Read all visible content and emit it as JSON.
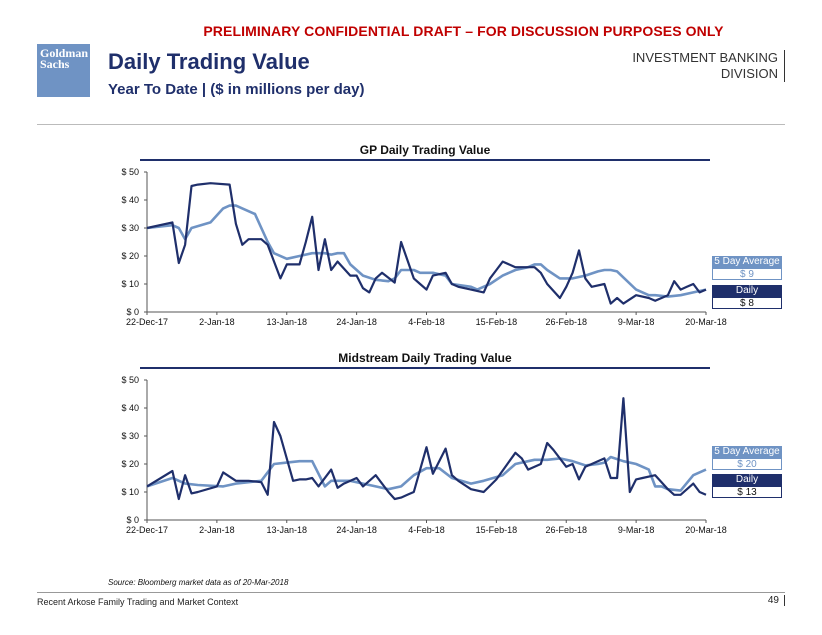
{
  "banner": "PRELIMINARY CONFIDENTIAL DRAFT – FOR DISCUSSION PURPOSES ONLY",
  "logo": {
    "line1": "Goldman",
    "line2": "Sachs"
  },
  "title": "Daily Trading Value",
  "subtitle": "Year To Date | ($ in millions per day)",
  "division": {
    "line1": "INVESTMENT BANKING",
    "line2": "DIVISION"
  },
  "colors": {
    "daily": "#1f2f6b",
    "avg": "#6f93c4",
    "banner": "#c00000"
  },
  "chart_data": [
    {
      "type": "line",
      "title": "GP Daily Trading Value",
      "x_tick_labels": [
        "22-Dec-17",
        "2-Jan-18",
        "13-Jan-18",
        "24-Jan-18",
        "4-Feb-18",
        "15-Feb-18",
        "26-Feb-18",
        "9-Mar-18",
        "20-Mar-18"
      ],
      "y_tick_labels": [
        "$ 0",
        "$ 10",
        "$ 20",
        "$ 30",
        "$ 40",
        "$ 50"
      ],
      "ylim": [
        0,
        50
      ],
      "x_range_days": [
        0,
        88
      ],
      "legend": {
        "avg_label": "5 Day Average",
        "avg_value": "$ 9",
        "daily_label": "Daily",
        "daily_value": "$ 8"
      },
      "series": [
        {
          "name": "Daily",
          "x": [
            0,
            4,
            5,
            6,
            7,
            8,
            10,
            13,
            14,
            15,
            16,
            18,
            19,
            21,
            22,
            24,
            25,
            26,
            27,
            28,
            29,
            30,
            32,
            33,
            34,
            35,
            36,
            37,
            39,
            40,
            42,
            43,
            44,
            45,
            47,
            48,
            49,
            51,
            53,
            54,
            55,
            56,
            58,
            59,
            61,
            62,
            63,
            65,
            66,
            67,
            68,
            69,
            70,
            72,
            73,
            74,
            75,
            77,
            79,
            80,
            82,
            83,
            84,
            85,
            86,
            87,
            88
          ],
          "values": [
            30,
            32,
            17.5,
            24,
            45,
            45.5,
            46,
            45.5,
            31.5,
            24,
            26,
            26,
            24,
            12,
            17,
            17,
            25,
            34,
            15,
            26,
            15,
            18,
            13,
            13,
            8.5,
            7,
            12,
            14,
            10.5,
            25,
            12,
            10,
            8,
            13,
            14,
            10,
            9,
            8,
            7,
            12,
            15,
            18,
            16,
            16,
            16,
            14,
            10,
            5,
            9,
            14,
            22,
            12,
            9,
            10,
            3,
            5,
            3,
            6,
            5,
            4,
            6,
            11,
            8,
            9,
            10,
            7,
            8
          ]
        },
        {
          "name": "5 Day Average",
          "x": [
            0,
            4,
            5,
            6,
            7,
            10,
            12,
            13,
            14,
            15,
            17,
            19,
            20,
            22,
            24,
            26,
            28,
            29,
            30,
            31,
            32,
            34,
            36,
            38,
            39,
            40,
            42,
            43,
            45,
            47,
            48,
            51,
            52,
            54,
            56,
            58,
            60,
            61,
            62,
            63,
            65,
            67,
            69,
            71,
            72,
            73,
            74,
            77,
            79,
            80,
            82,
            84,
            86,
            88
          ],
          "values": [
            30,
            31,
            30,
            26,
            30,
            32,
            37,
            38,
            38,
            37,
            35,
            25,
            21,
            19,
            20,
            21,
            21,
            20.5,
            21,
            21,
            17,
            13,
            11.5,
            11,
            12,
            15,
            15,
            14,
            14,
            13,
            10,
            9,
            8,
            10,
            13,
            15,
            16,
            17,
            17,
            15,
            12,
            12,
            13,
            14.5,
            15,
            15,
            14.5,
            8,
            6,
            6,
            5.5,
            6,
            7,
            8
          ]
        }
      ]
    },
    {
      "type": "line",
      "title": "Midstream Daily Trading Value",
      "x_tick_labels": [
        "22-Dec-17",
        "2-Jan-18",
        "13-Jan-18",
        "24-Jan-18",
        "4-Feb-18",
        "15-Feb-18",
        "26-Feb-18",
        "9-Mar-18",
        "20-Mar-18"
      ],
      "y_tick_labels": [
        "$ 0",
        "$ 10",
        "$ 20",
        "$ 30",
        "$ 40",
        "$ 50"
      ],
      "ylim": [
        0,
        50
      ],
      "x_range_days": [
        0,
        88
      ],
      "legend": {
        "avg_label": "5 Day Average",
        "avg_value": "$ 20",
        "daily_label": "Daily",
        "daily_value": "$ 13"
      },
      "series": [
        {
          "name": "Daily",
          "x": [
            0,
            4,
            5,
            6,
            7,
            8,
            11,
            12,
            14,
            16,
            18,
            19,
            20,
            21,
            23,
            24,
            25,
            26,
            27,
            29,
            30,
            31,
            33,
            34,
            36,
            38,
            39,
            40,
            41,
            42,
            44,
            45,
            47,
            48,
            49,
            51,
            53,
            55,
            58,
            59,
            60,
            62,
            63,
            64,
            66,
            67,
            68,
            69,
            70,
            72,
            73,
            74,
            75,
            76,
            77,
            78,
            80,
            82,
            83,
            84,
            86,
            87,
            88
          ],
          "values": [
            12,
            17.5,
            7.5,
            16,
            9.5,
            10,
            12,
            17,
            14,
            14,
            13.5,
            9,
            35,
            30,
            14,
            14.5,
            14.5,
            15,
            12,
            18,
            11.5,
            13,
            15,
            12,
            16,
            10,
            7.5,
            8,
            9,
            10,
            26,
            16.5,
            25.5,
            16,
            14,
            11,
            10,
            14.5,
            24,
            22,
            18,
            20,
            27.5,
            25,
            19,
            20,
            14.5,
            19,
            20,
            22,
            15,
            15,
            43.5,
            10,
            14.5,
            15,
            16,
            11,
            9,
            9,
            13,
            10,
            9
          ]
        },
        {
          "name": "5 Day Average",
          "x": [
            0,
            4,
            6,
            8,
            12,
            14,
            16,
            18,
            20,
            22,
            24,
            26,
            28,
            29,
            30,
            32,
            34,
            36,
            38,
            40,
            42,
            44,
            46,
            48,
            51,
            53,
            56,
            58,
            60,
            61,
            62,
            63,
            65,
            67,
            69,
            71,
            72,
            73,
            75,
            77,
            79,
            80,
            81,
            82,
            84,
            86,
            88
          ],
          "values": [
            12,
            15,
            13,
            12.5,
            12,
            13,
            13.5,
            14,
            20,
            20.5,
            21,
            21,
            12,
            14,
            14,
            14,
            13,
            12,
            11,
            12,
            16,
            18.5,
            18.5,
            15,
            13,
            14,
            16,
            20,
            21,
            21.5,
            21.5,
            21.5,
            22,
            21,
            19.5,
            20,
            20.5,
            22.5,
            21,
            20,
            18,
            12,
            12,
            11,
            10.5,
            16,
            18
          ]
        }
      ]
    }
  ],
  "source": "Source: Bloomberg market data as of 20-Mar-2018",
  "footer": "Recent Arkose Family Trading and Market Context",
  "page_number": "49"
}
